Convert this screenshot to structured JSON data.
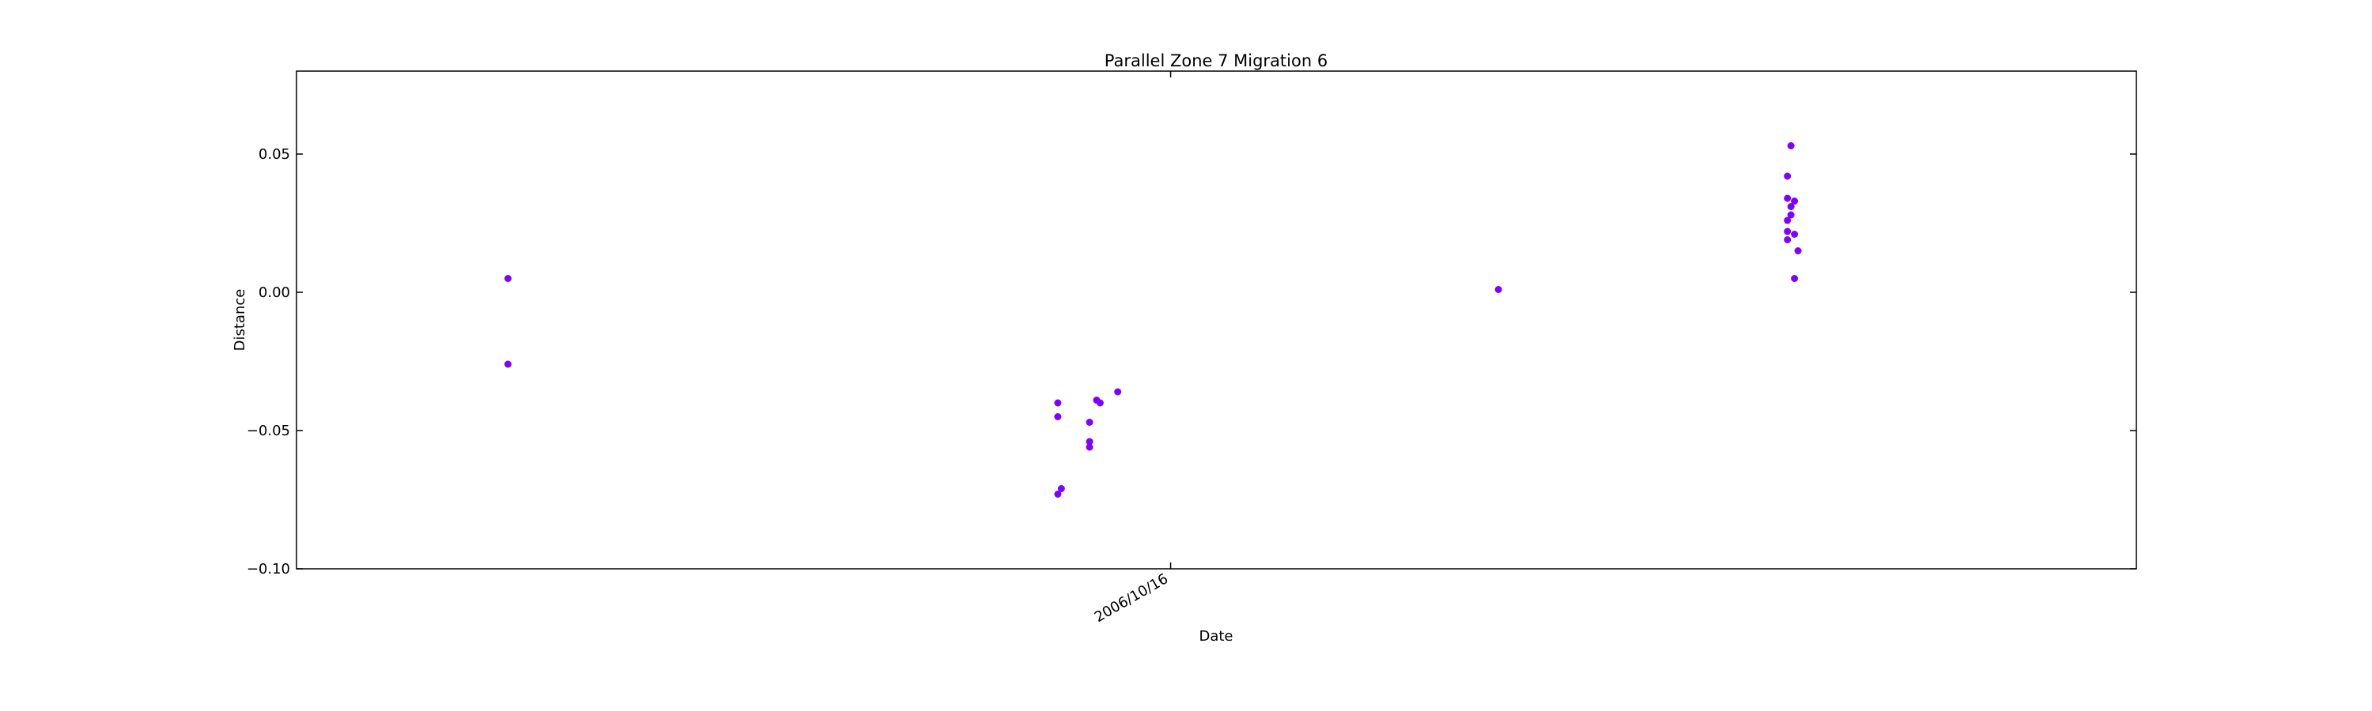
{
  "chart_data": {
    "type": "scatter",
    "title": "Parallel Zone 7 Migration 6",
    "xlabel": "Date",
    "ylabel": "Distance",
    "x_axis_type": "date",
    "x_tick_labels": [
      "2006/10/16"
    ],
    "x_ticks": [
      "2006-10-16"
    ],
    "xlim": [
      "2006-02-10",
      "2007-07-17"
    ],
    "ylim": [
      -0.1,
      0.08
    ],
    "y_ticks": [
      -0.1,
      -0.05,
      0.0,
      0.05
    ],
    "y_tick_labels": [
      "−0.10",
      "−0.05",
      "0.00",
      "0.05"
    ],
    "grid": false,
    "legend": "none",
    "marker_color": "#7f00ff",
    "series": [
      {
        "points": [
          {
            "x": "2006-04-11",
            "y": 0.005
          },
          {
            "x": "2006-04-11",
            "y": -0.026
          },
          {
            "x": "2006-09-14",
            "y": -0.04
          },
          {
            "x": "2006-09-14",
            "y": -0.045
          },
          {
            "x": "2006-09-15",
            "y": -0.071
          },
          {
            "x": "2006-09-14",
            "y": -0.073
          },
          {
            "x": "2006-09-23",
            "y": -0.047
          },
          {
            "x": "2006-09-23",
            "y": -0.054
          },
          {
            "x": "2006-09-23",
            "y": -0.056
          },
          {
            "x": "2006-09-25",
            "y": -0.039
          },
          {
            "x": "2006-09-26",
            "y": -0.04
          },
          {
            "x": "2006-10-01",
            "y": -0.036
          },
          {
            "x": "2007-01-17",
            "y": 0.001
          },
          {
            "x": "2007-04-10",
            "y": 0.053
          },
          {
            "x": "2007-04-09",
            "y": 0.042
          },
          {
            "x": "2007-04-09",
            "y": 0.034
          },
          {
            "x": "2007-04-11",
            "y": 0.033
          },
          {
            "x": "2007-04-10",
            "y": 0.031
          },
          {
            "x": "2007-04-10",
            "y": 0.028
          },
          {
            "x": "2007-04-09",
            "y": 0.026
          },
          {
            "x": "2007-04-09",
            "y": 0.022
          },
          {
            "x": "2007-04-11",
            "y": 0.021
          },
          {
            "x": "2007-04-09",
            "y": 0.019
          },
          {
            "x": "2007-04-12",
            "y": 0.015
          },
          {
            "x": "2007-04-11",
            "y": 0.005
          }
        ]
      }
    ]
  }
}
